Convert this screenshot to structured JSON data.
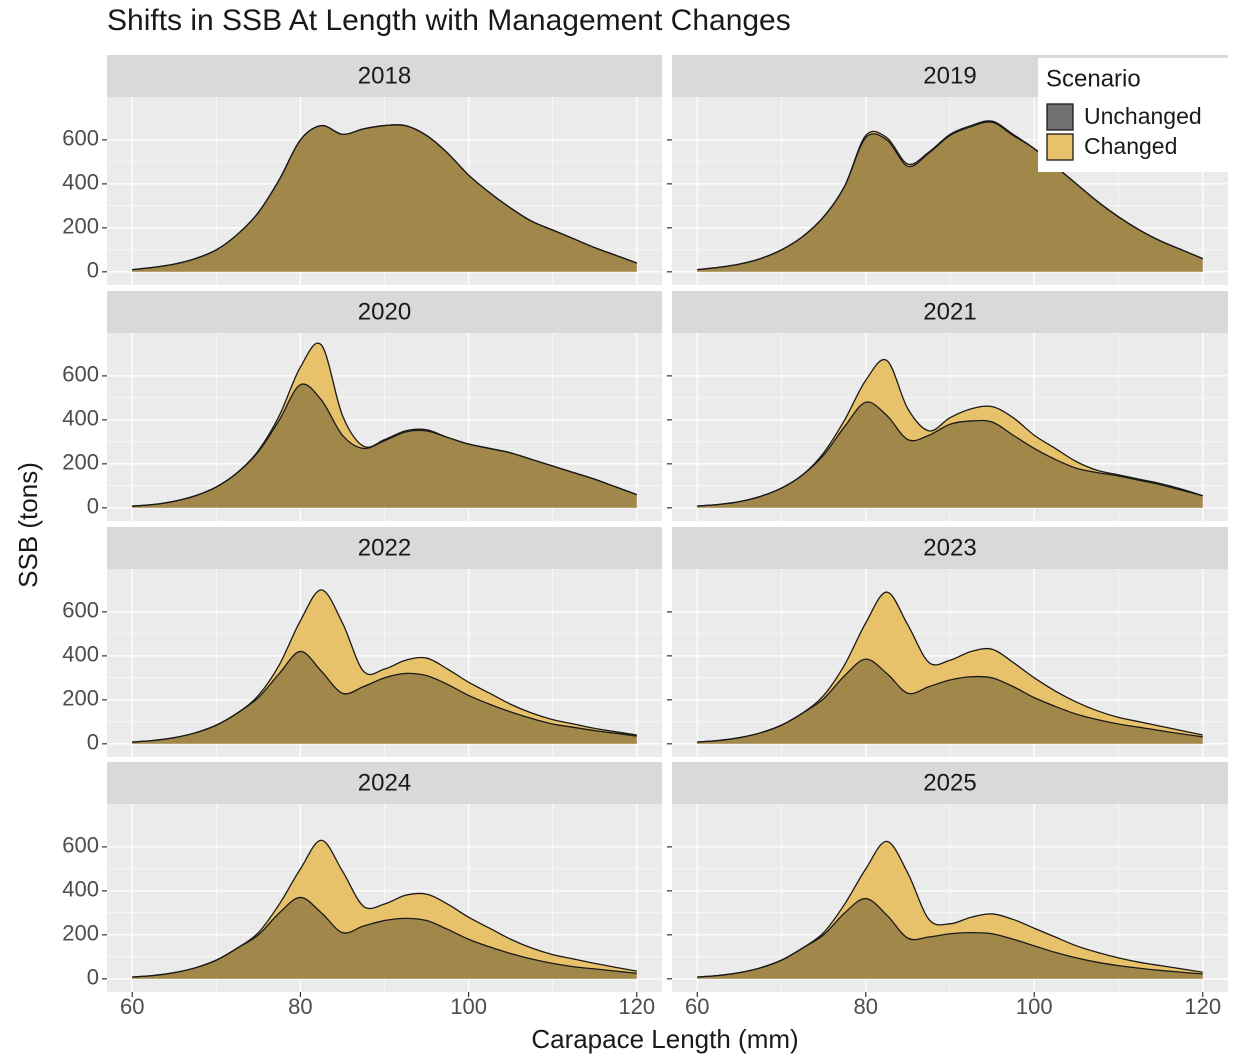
{
  "title": "Shifts in SSB At Length with Management Changes",
  "xlabel": "Carapace Length (mm)",
  "ylabel": "SSB (tons)",
  "legend": {
    "title": "Scenario",
    "position": "top-right"
  },
  "chart_data": [
    {
      "type": "area",
      "title": "2018",
      "x": [
        60,
        62.5,
        65,
        67.5,
        70,
        72.5,
        75,
        77.5,
        80,
        82.5,
        85,
        87.5,
        90,
        92.5,
        95,
        97.5,
        100,
        102.5,
        105,
        107.5,
        110,
        112.5,
        115,
        117.5,
        120
      ],
      "series": [
        {
          "name": "Unchanged",
          "color": "#707070",
          "values": [
            10,
            20,
            35,
            60,
            100,
            170,
            270,
            420,
            600,
            665,
            625,
            650,
            665,
            665,
            620,
            540,
            440,
            360,
            290,
            230,
            190,
            150,
            110,
            75,
            40
          ]
        },
        {
          "name": "Changed",
          "color": "#E8C26B",
          "values": [
            10,
            20,
            35,
            60,
            100,
            170,
            270,
            420,
            600,
            665,
            625,
            650,
            665,
            665,
            620,
            540,
            440,
            360,
            290,
            230,
            190,
            150,
            110,
            75,
            40
          ]
        }
      ],
      "xlim": [
        57,
        123
      ],
      "xticks": [
        60,
        80,
        100,
        120
      ],
      "ylim": [
        -60,
        795
      ],
      "yticks": [
        0,
        200,
        400,
        600
      ],
      "grid": true
    },
    {
      "type": "area",
      "title": "2019",
      "x": [
        60,
        62.5,
        65,
        67.5,
        70,
        72.5,
        75,
        77.5,
        80,
        82.5,
        85,
        87.5,
        90,
        92.5,
        95,
        97.5,
        100,
        102.5,
        105,
        107.5,
        110,
        112.5,
        115,
        117.5,
        120
      ],
      "series": [
        {
          "name": "Unchanged",
          "color": "#707070",
          "values": [
            10,
            20,
            35,
            60,
            100,
            160,
            250,
            390,
            610,
            600,
            480,
            540,
            620,
            660,
            680,
            620,
            560,
            480,
            400,
            320,
            250,
            190,
            140,
            100,
            60
          ]
        },
        {
          "name": "Changed",
          "color": "#E8C26B",
          "values": [
            10,
            20,
            35,
            60,
            100,
            160,
            250,
            390,
            620,
            610,
            490,
            545,
            625,
            665,
            685,
            625,
            560,
            480,
            400,
            320,
            250,
            190,
            140,
            100,
            60
          ]
        }
      ],
      "xlim": [
        57,
        123
      ],
      "xticks": [
        60,
        80,
        100,
        120
      ],
      "ylim": [
        -60,
        795
      ],
      "yticks": [
        0,
        200,
        400,
        600
      ],
      "grid": true
    },
    {
      "type": "area",
      "title": "2020",
      "x": [
        60,
        62.5,
        65,
        67.5,
        70,
        72.5,
        75,
        77.5,
        80,
        82.5,
        85,
        87.5,
        90,
        92.5,
        95,
        97.5,
        100,
        102.5,
        105,
        107.5,
        110,
        112.5,
        115,
        117.5,
        120
      ],
      "series": [
        {
          "name": "Unchanged",
          "color": "#707070",
          "values": [
            8,
            15,
            30,
            55,
            95,
            160,
            255,
            400,
            560,
            490,
            330,
            270,
            305,
            345,
            350,
            320,
            290,
            270,
            250,
            220,
            190,
            160,
            130,
            95,
            60
          ]
        },
        {
          "name": "Changed",
          "color": "#E8C26B",
          "values": [
            8,
            15,
            30,
            55,
            95,
            160,
            260,
            420,
            640,
            740,
            420,
            280,
            310,
            350,
            355,
            320,
            290,
            270,
            250,
            220,
            190,
            160,
            130,
            95,
            60
          ]
        }
      ],
      "xlim": [
        57,
        123
      ],
      "xticks": [
        60,
        80,
        100,
        120
      ],
      "ylim": [
        -60,
        795
      ],
      "yticks": [
        0,
        200,
        400,
        600
      ],
      "grid": true
    },
    {
      "type": "area",
      "title": "2021",
      "x": [
        60,
        62.5,
        65,
        67.5,
        70,
        72.5,
        75,
        77.5,
        80,
        82.5,
        85,
        87.5,
        90,
        92.5,
        95,
        97.5,
        100,
        102.5,
        105,
        107.5,
        110,
        112.5,
        115,
        117.5,
        120
      ],
      "series": [
        {
          "name": "Unchanged",
          "color": "#707070",
          "values": [
            8,
            15,
            28,
            52,
            90,
            150,
            240,
            370,
            480,
            420,
            310,
            330,
            380,
            395,
            390,
            330,
            270,
            220,
            180,
            160,
            145,
            125,
            105,
            80,
            55
          ]
        },
        {
          "name": "Changed",
          "color": "#E8C26B",
          "values": [
            8,
            15,
            28,
            52,
            90,
            150,
            250,
            400,
            580,
            670,
            450,
            350,
            410,
            450,
            460,
            410,
            330,
            270,
            210,
            170,
            150,
            130,
            110,
            85,
            55
          ]
        }
      ],
      "xlim": [
        57,
        123
      ],
      "xticks": [
        60,
        80,
        100,
        120
      ],
      "ylim": [
        -60,
        795
      ],
      "yticks": [
        0,
        200,
        400,
        600
      ],
      "grid": true
    },
    {
      "type": "area",
      "title": "2022",
      "x": [
        60,
        62.5,
        65,
        67.5,
        70,
        72.5,
        75,
        77.5,
        80,
        82.5,
        85,
        87.5,
        90,
        92.5,
        95,
        97.5,
        100,
        102.5,
        105,
        107.5,
        110,
        112.5,
        115,
        117.5,
        120
      ],
      "series": [
        {
          "name": "Unchanged",
          "color": "#707070",
          "values": [
            8,
            15,
            28,
            50,
            85,
            140,
            210,
            320,
            420,
            330,
            230,
            260,
            300,
            320,
            310,
            270,
            220,
            180,
            145,
            115,
            90,
            75,
            60,
            48,
            35
          ]
        },
        {
          "name": "Changed",
          "color": "#E8C26B",
          "values": [
            8,
            15,
            28,
            50,
            85,
            140,
            220,
            360,
            560,
            700,
            550,
            330,
            340,
            380,
            390,
            340,
            280,
            230,
            180,
            140,
            110,
            90,
            70,
            55,
            40
          ]
        }
      ],
      "xlim": [
        57,
        123
      ],
      "xticks": [
        60,
        80,
        100,
        120
      ],
      "ylim": [
        -60,
        795
      ],
      "yticks": [
        0,
        200,
        400,
        600
      ],
      "grid": true
    },
    {
      "type": "area",
      "title": "2023",
      "x": [
        60,
        62.5,
        65,
        67.5,
        70,
        72.5,
        75,
        77.5,
        80,
        82.5,
        85,
        87.5,
        90,
        92.5,
        95,
        97.5,
        100,
        102.5,
        105,
        107.5,
        110,
        112.5,
        115,
        117.5,
        120
      ],
      "series": [
        {
          "name": "Unchanged",
          "color": "#707070",
          "values": [
            8,
            15,
            28,
            50,
            85,
            140,
            205,
            310,
            385,
            320,
            230,
            260,
            290,
            305,
            300,
            260,
            210,
            170,
            135,
            110,
            90,
            75,
            60,
            45,
            32
          ]
        },
        {
          "name": "Changed",
          "color": "#E8C26B",
          "values": [
            8,
            15,
            28,
            50,
            85,
            140,
            220,
            360,
            550,
            690,
            540,
            370,
            380,
            420,
            430,
            370,
            300,
            240,
            190,
            150,
            120,
            100,
            80,
            60,
            40
          ]
        }
      ],
      "xlim": [
        57,
        123
      ],
      "xticks": [
        60,
        80,
        100,
        120
      ],
      "ylim": [
        -60,
        795
      ],
      "yticks": [
        0,
        200,
        400,
        600
      ],
      "grid": true
    },
    {
      "type": "area",
      "title": "2024",
      "x": [
        60,
        62.5,
        65,
        67.5,
        70,
        72.5,
        75,
        77.5,
        80,
        82.5,
        85,
        87.5,
        90,
        92.5,
        95,
        97.5,
        100,
        102.5,
        105,
        107.5,
        110,
        112.5,
        115,
        117.5,
        120
      ],
      "series": [
        {
          "name": "Unchanged",
          "color": "#707070",
          "values": [
            8,
            15,
            28,
            50,
            85,
            140,
            200,
            300,
            370,
            300,
            210,
            240,
            265,
            275,
            265,
            225,
            180,
            145,
            115,
            90,
            70,
            55,
            45,
            35,
            25
          ]
        },
        {
          "name": "Changed",
          "color": "#E8C26B",
          "values": [
            8,
            15,
            28,
            50,
            85,
            140,
            210,
            340,
            500,
            630,
            490,
            330,
            340,
            380,
            385,
            340,
            280,
            230,
            180,
            140,
            110,
            90,
            70,
            52,
            35
          ]
        }
      ],
      "xlim": [
        57,
        123
      ],
      "xticks": [
        60,
        80,
        100,
        120
      ],
      "ylim": [
        -60,
        795
      ],
      "yticks": [
        0,
        200,
        400,
        600
      ],
      "grid": true
    },
    {
      "type": "area",
      "title": "2025",
      "x": [
        60,
        62.5,
        65,
        67.5,
        70,
        72.5,
        75,
        77.5,
        80,
        82.5,
        85,
        87.5,
        90,
        92.5,
        95,
        97.5,
        100,
        102.5,
        105,
        107.5,
        110,
        112.5,
        115,
        117.5,
        120
      ],
      "series": [
        {
          "name": "Unchanged",
          "color": "#707070",
          "values": [
            8,
            15,
            28,
            50,
            85,
            140,
            200,
            300,
            365,
            290,
            185,
            190,
            205,
            210,
            205,
            180,
            150,
            120,
            95,
            75,
            60,
            48,
            38,
            30,
            22
          ]
        },
        {
          "name": "Changed",
          "color": "#E8C26B",
          "values": [
            8,
            15,
            28,
            50,
            85,
            140,
            210,
            340,
            500,
            625,
            480,
            270,
            250,
            280,
            295,
            270,
            230,
            190,
            150,
            120,
            95,
            75,
            60,
            45,
            30
          ]
        }
      ],
      "xlim": [
        57,
        123
      ],
      "xticks": [
        60,
        80,
        100,
        120
      ],
      "ylim": [
        -60,
        795
      ],
      "yticks": [
        0,
        200,
        400,
        600
      ],
      "grid": true
    }
  ]
}
